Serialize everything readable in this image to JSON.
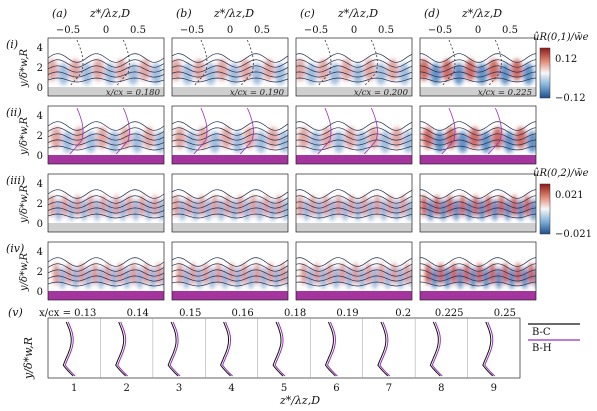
{
  "columns": [
    {
      "id": "a",
      "label": "(a)",
      "header": "z*/λz,D"
    },
    {
      "id": "b",
      "label": "(b)",
      "header": "z*/λz,D"
    },
    {
      "id": "c",
      "label": "(c)",
      "header": "z*/λz,D"
    },
    {
      "id": "d",
      "label": "(d)",
      "header": "z*/λz,D"
    }
  ],
  "top_axis_ticks": [
    "−0.5",
    "0",
    "0.5"
  ],
  "rows": [
    {
      "id": "i",
      "label": "(i)",
      "ylabel": "y/δ*w,R",
      "wall": "grey",
      "mode": "R(0,1)",
      "xc_labels": [
        "x/cx = 0.180",
        "x/cx = 0.190",
        "x/cx = 0.200",
        "x/cx = 0.225"
      ]
    },
    {
      "id": "ii",
      "label": "(ii)",
      "ylabel": "y/δ*w,R",
      "wall": "purple",
      "mode": "R(0,1)"
    },
    {
      "id": "iii",
      "label": "(iii)",
      "ylabel": "y/δ*w,R",
      "wall": "grey",
      "mode": "R(0,2)"
    },
    {
      "id": "iv",
      "label": "(iv)",
      "ylabel": "y/δ*w,R",
      "wall": "purple",
      "mode": "R(0,2)"
    }
  ],
  "y_ticks": [
    "0",
    "2",
    "4"
  ],
  "colorbars": [
    {
      "title": "ûR(0,1)/w̄e",
      "max": "0.12",
      "min": "−0.12"
    },
    {
      "title": "ûR(0,2)/w̄e",
      "max": "0.021",
      "min": "−0.021"
    }
  ],
  "profiles_panel": {
    "label": "(v)",
    "ylabel": "y/δ*w,R",
    "xc_prefix": "x/cx = ",
    "stations": [
      "0.13",
      "0.14",
      "0.15",
      "0.16",
      "0.18",
      "0.19",
      "0.2",
      "0.225",
      "0.25"
    ],
    "xticks": [
      "1",
      "2",
      "3",
      "4",
      "5",
      "6",
      "7",
      "8",
      "9"
    ],
    "legend": [
      {
        "name": "B-C",
        "color": "#111111"
      },
      {
        "name": "B-H",
        "color": "#9b30b8"
      }
    ]
  },
  "xlabel": "z*/λz,D",
  "colors": {
    "positive": "#c0392b",
    "negative": "#2c6fb3",
    "grey_wall": "#cfcfcf",
    "purple_wall": "#a4359f",
    "isoline": "#1f2f4d",
    "profile_grey": "#777777",
    "profile_purple": "#9b30b8"
  }
}
